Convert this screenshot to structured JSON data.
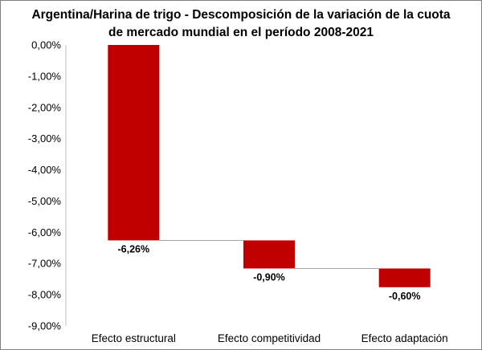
{
  "chart_data": {
    "type": "waterfall",
    "title_lines": [
      "Argentina/Harina de trigo - Descomposición de la variación de la cuota",
      "de mercado mundial en el período 2008-2021"
    ],
    "categories": [
      "Efecto estructural",
      "Efecto competitividad",
      "Efecto adaptación"
    ],
    "values": [
      -6.26,
      -0.9,
      -0.6
    ],
    "data_labels": [
      "-6,26%",
      "-0,90%",
      "-0,60%"
    ],
    "yticks": [
      "0,00%",
      "-1,00%",
      "-2,00%",
      "-3,00%",
      "-4,00%",
      "-5,00%",
      "-6,00%",
      "-7,00%",
      "-8,00%",
      "-9,00%"
    ],
    "ylim": [
      -9,
      0
    ],
    "grid": false,
    "legend": "none",
    "bar_color": "#c00000",
    "connector_color": "#a6a6a6",
    "axis_color": "#bfbfbf"
  }
}
